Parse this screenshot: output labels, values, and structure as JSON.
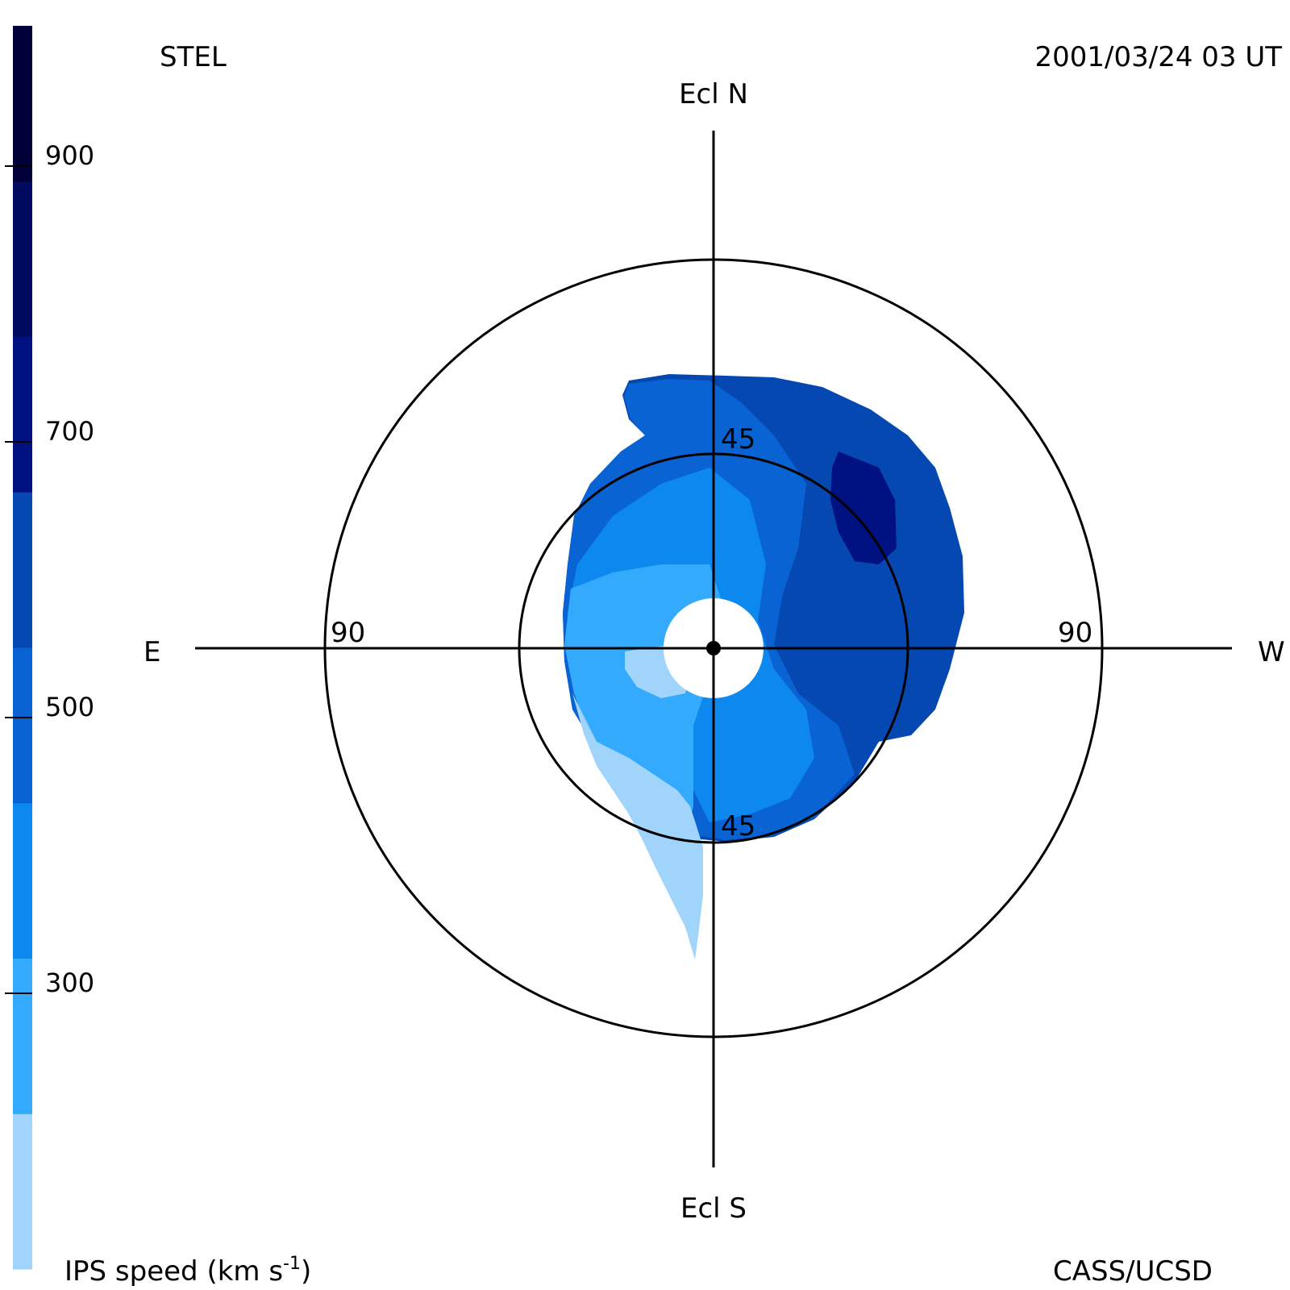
{
  "header": {
    "station": "STEL",
    "datetime": "2001/03/24 03 UT"
  },
  "footer": {
    "credit": "CASS/UCSD",
    "colorbar_title": "IPS speed (km s",
    "colorbar_title_sup": "-1",
    "colorbar_title_end": ")"
  },
  "directions": {
    "north": "Ecl N",
    "south": "Ecl S",
    "east": "E",
    "west": "W"
  },
  "rings": {
    "inner_label_top": "45",
    "inner_label_bottom": "45",
    "outer_label_left": "90",
    "outer_label_right": "90"
  },
  "colorbar": {
    "tick_labels": [
      "300",
      "500",
      "700",
      "900"
    ],
    "colors": [
      "#a0d4fb",
      "#33aafb",
      "#0d88ef",
      "#0a63d3",
      "#0648b2",
      "#001282",
      "#000a5e",
      "#000038"
    ],
    "range": [
      100,
      1000
    ]
  },
  "map_palette": {
    "lightest": "#a0d4fb",
    "light": "#33aafb",
    "medium": "#0d88ef",
    "medium_dark": "#0a63d3",
    "dark": "#0648b2",
    "darkest": "#001282"
  }
}
